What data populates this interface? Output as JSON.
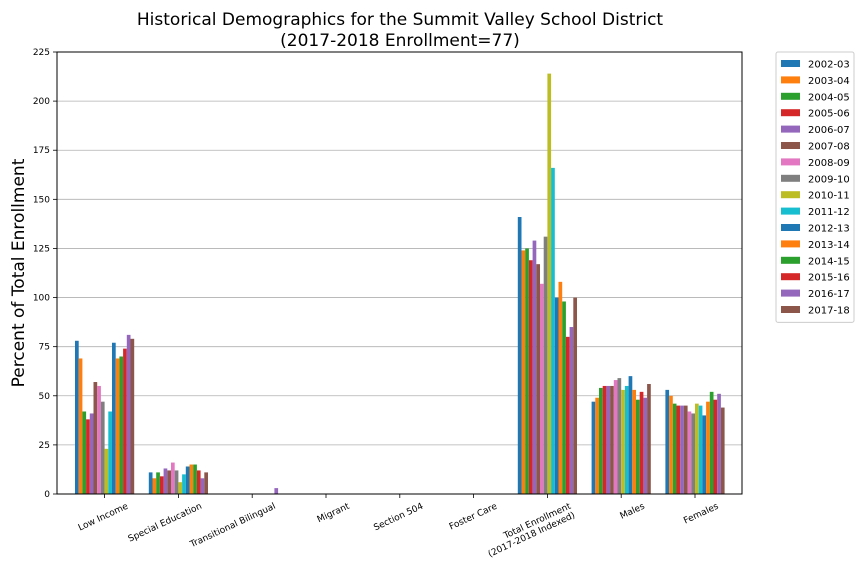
{
  "chart_data": {
    "type": "bar",
    "title": "Historical Demographics for the Summit Valley School District",
    "subtitle": "(2017-2018 Enrollment=77)",
    "xlabel": "",
    "ylabel": "Percent of Total Enrollment",
    "ylim": [
      0,
      225
    ],
    "yticks": [
      0,
      25,
      50,
      75,
      100,
      125,
      150,
      175,
      200,
      225
    ],
    "grid": true,
    "legend_position": "outside-right",
    "categories": [
      [
        "Low Income"
      ],
      [
        "Special Education"
      ],
      [
        "Transitional Bilingual"
      ],
      [
        "Migrant"
      ],
      [
        "Section 504"
      ],
      [
        "Foster Care"
      ],
      [
        "Total Enrollment",
        "(2017-2018 Indexed)"
      ],
      [
        "Males"
      ],
      [
        "Females"
      ]
    ],
    "series": [
      {
        "name": "2002-03",
        "color": "#1f77b4",
        "values": [
          78,
          11,
          0,
          0,
          0,
          0,
          141,
          47,
          53
        ]
      },
      {
        "name": "2003-04",
        "color": "#ff7f0e",
        "values": [
          69,
          8,
          0,
          0,
          0,
          0,
          124,
          49,
          50
        ]
      },
      {
        "name": "2004-05",
        "color": "#2ca02c",
        "values": [
          42,
          11,
          0,
          0,
          0,
          0,
          125,
          54,
          46
        ]
      },
      {
        "name": "2005-06",
        "color": "#d62728",
        "values": [
          38,
          9,
          0,
          0,
          0,
          0,
          119,
          55,
          45
        ]
      },
      {
        "name": "2006-07",
        "color": "#9467bd",
        "values": [
          41,
          13,
          0,
          0,
          0,
          0,
          129,
          55,
          45
        ]
      },
      {
        "name": "2007-08",
        "color": "#8c564b",
        "values": [
          57,
          12,
          0,
          0,
          0,
          0,
          117,
          55,
          45
        ]
      },
      {
        "name": "2008-09",
        "color": "#e377c2",
        "values": [
          55,
          16,
          0,
          0,
          0,
          0,
          107,
          58,
          42
        ]
      },
      {
        "name": "2009-10",
        "color": "#7f7f7f",
        "values": [
          47,
          12,
          0,
          0,
          0,
          0,
          131,
          59,
          41
        ]
      },
      {
        "name": "2010-11",
        "color": "#bcbd22",
        "values": [
          23,
          6,
          0,
          0,
          0,
          0,
          214,
          53,
          46
        ]
      },
      {
        "name": "2011-12",
        "color": "#17becf",
        "values": [
          42,
          10,
          0,
          0,
          0,
          0,
          166,
          55,
          45
        ]
      },
      {
        "name": "2012-13",
        "color": "#1f77b4",
        "values": [
          77,
          14,
          0,
          0,
          0,
          0,
          100,
          60,
          40
        ]
      },
      {
        "name": "2013-14",
        "color": "#ff7f0e",
        "values": [
          69,
          15,
          0,
          0,
          0,
          0,
          108,
          53,
          47
        ]
      },
      {
        "name": "2014-15",
        "color": "#2ca02c",
        "values": [
          70,
          15,
          0,
          0,
          0,
          0,
          98,
          48,
          52
        ]
      },
      {
        "name": "2015-16",
        "color": "#d62728",
        "values": [
          74,
          12,
          0,
          0,
          0,
          0,
          80,
          52,
          48
        ]
      },
      {
        "name": "2016-17",
        "color": "#9467bd",
        "values": [
          81,
          8,
          3,
          0,
          0,
          0,
          85,
          49,
          51
        ]
      },
      {
        "name": "2017-18",
        "color": "#8c564b",
        "values": [
          79,
          11,
          0,
          0,
          0,
          0,
          100,
          56,
          44
        ]
      }
    ]
  }
}
